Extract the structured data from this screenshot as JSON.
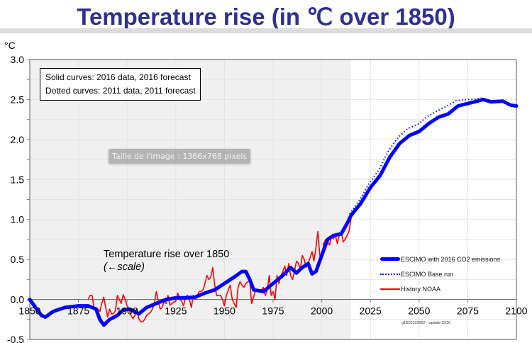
{
  "title": "Temperature rise (in ℃ over 1850)",
  "tooltip": "Taille de l'image : 1366x768 pixels",
  "chart_data": {
    "type": "line",
    "title": "Temperature rise (in ℃ over 1850)",
    "ylabel": "°C",
    "xlabel": "",
    "xlim": [
      1850,
      2100
    ],
    "ylim": [
      -0.5,
      3.0
    ],
    "x_ticks": [
      "1850",
      "1875",
      "1900",
      "1925",
      "1950",
      "1975",
      "2000",
      "2025",
      "2050",
      "2075",
      "2100"
    ],
    "y_ticks": [
      "3.0",
      "2.5",
      "2.0",
      "1.5",
      "1.0",
      "0.5",
      "0.0",
      "-0.5"
    ],
    "grid": true,
    "shaded_history_until": 2015,
    "info_box": [
      "Solid curves: 2016 data, 2016 forecast",
      "Dotted curves: 2011 data, 2011 forecast"
    ],
    "annotation": [
      "Temperature rise over 1850",
      "(←scale)"
    ],
    "legend_placement": "bottom-right",
    "footnote": "g1610102052 - update 2016",
    "series": [
      {
        "name": "ESCIMO with 2016 CO2 emissions",
        "style": "solid-thick",
        "color": "#0000ff",
        "x": [
          1850,
          1853,
          1856,
          1858,
          1862,
          1868,
          1875,
          1880,
          1884,
          1886,
          1888,
          1891,
          1895,
          1898,
          1901,
          1904,
          1906,
          1910,
          1915,
          1920,
          1925,
          1930,
          1935,
          1940,
          1945,
          1950,
          1955,
          1959,
          1961,
          1963,
          1965,
          1970,
          1975,
          1980,
          1984,
          1987,
          1990,
          1993,
          1995,
          1997,
          2000,
          2003,
          2006,
          2010,
          2013,
          2015,
          2020,
          2025,
          2030,
          2035,
          2040,
          2045,
          2050,
          2055,
          2060,
          2065,
          2070,
          2075,
          2080,
          2083,
          2087,
          2093,
          2097,
          2100
        ],
        "y": [
          0.0,
          -0.1,
          -0.2,
          -0.22,
          -0.15,
          -0.1,
          -0.08,
          -0.08,
          -0.12,
          -0.25,
          -0.32,
          -0.25,
          -0.2,
          -0.13,
          -0.12,
          -0.15,
          -0.18,
          -0.1,
          -0.05,
          0.0,
          0.02,
          0.02,
          0.03,
          0.08,
          0.12,
          0.2,
          0.28,
          0.35,
          0.35,
          0.25,
          0.12,
          0.1,
          0.2,
          0.3,
          0.4,
          0.33,
          0.4,
          0.45,
          0.32,
          0.35,
          0.55,
          0.75,
          0.8,
          0.82,
          0.95,
          1.05,
          1.2,
          1.4,
          1.55,
          1.78,
          1.95,
          2.05,
          2.1,
          2.2,
          2.28,
          2.32,
          2.42,
          2.45,
          2.48,
          2.5,
          2.47,
          2.48,
          2.43,
          2.42
        ]
      },
      {
        "name": "ESCIMO Base run",
        "style": "dotted",
        "color": "#0000ff",
        "x": [
          2015,
          2020,
          2025,
          2030,
          2035,
          2040,
          2045,
          2050,
          2055,
          2060,
          2065,
          2070,
          2075,
          2080,
          2083
        ],
        "y": [
          1.05,
          1.22,
          1.43,
          1.6,
          1.84,
          2.01,
          2.12,
          2.17,
          2.27,
          2.34,
          2.4,
          2.47,
          2.48,
          2.49,
          2.5
        ]
      },
      {
        "name": "History NOAA",
        "style": "solid-thin",
        "color": "#ff0000",
        "x": [
          1880,
          1881,
          1882,
          1883,
          1884,
          1885,
          1886,
          1887,
          1888,
          1889,
          1890,
          1891,
          1892,
          1893,
          1894,
          1895,
          1896,
          1897,
          1898,
          1899,
          1900,
          1901,
          1902,
          1903,
          1904,
          1905,
          1906,
          1907,
          1908,
          1909,
          1910,
          1911,
          1912,
          1913,
          1914,
          1915,
          1916,
          1917,
          1918,
          1919,
          1920,
          1921,
          1922,
          1923,
          1924,
          1925,
          1926,
          1927,
          1928,
          1929,
          1930,
          1931,
          1932,
          1933,
          1934,
          1935,
          1936,
          1937,
          1938,
          1939,
          1940,
          1941,
          1942,
          1943,
          1944,
          1945,
          1946,
          1947,
          1948,
          1949,
          1950,
          1951,
          1952,
          1953,
          1954,
          1955,
          1956,
          1957,
          1958,
          1959,
          1960,
          1961,
          1962,
          1963,
          1964,
          1965,
          1966,
          1967,
          1968,
          1969,
          1970,
          1971,
          1972,
          1973,
          1974,
          1975,
          1976,
          1977,
          1978,
          1979,
          1980,
          1981,
          1982,
          1983,
          1984,
          1985,
          1986,
          1987,
          1988,
          1989,
          1990,
          1991,
          1992,
          1993,
          1994,
          1995,
          1996,
          1997,
          1998,
          1999,
          2000,
          2001,
          2002,
          2003,
          2004,
          2005,
          2006,
          2007,
          2008,
          2009,
          2010,
          2011,
          2012,
          2013,
          2014,
          2015
        ],
        "y": [
          0.0,
          0.05,
          0.05,
          -0.1,
          -0.1,
          -0.12,
          -0.15,
          -0.05,
          0.03,
          -0.1,
          -0.22,
          -0.12,
          -0.18,
          -0.18,
          -0.14,
          0.05,
          0.0,
          -0.05,
          0.06,
          0.0,
          -0.08,
          -0.12,
          -0.2,
          -0.24,
          -0.2,
          -0.12,
          -0.24,
          -0.28,
          -0.28,
          -0.25,
          -0.2,
          -0.18,
          -0.16,
          -0.12,
          -0.05,
          0.1,
          -0.02,
          -0.12,
          -0.1,
          -0.02,
          -0.05,
          0.05,
          -0.07,
          -0.05,
          -0.03,
          -0.02,
          0.08,
          0.0,
          -0.02,
          -0.08,
          0.03,
          0.05,
          0.0,
          -0.1,
          0.05,
          0.0,
          0.04,
          0.1,
          0.1,
          0.12,
          0.2,
          0.3,
          0.25,
          0.28,
          0.4,
          0.18,
          0.05,
          0.05,
          0.05,
          0.0,
          -0.08,
          0.05,
          0.12,
          0.18,
          0.0,
          -0.05,
          -0.1,
          0.15,
          0.22,
          0.18,
          0.15,
          0.2,
          0.22,
          0.23,
          -0.05,
          0.03,
          0.12,
          0.1,
          0.1,
          0.12,
          0.15,
          0.05,
          0.12,
          0.3,
          0.05,
          0.1,
          0.0,
          0.3,
          0.2,
          0.3,
          0.35,
          0.42,
          0.3,
          0.45,
          0.3,
          0.25,
          0.35,
          0.48,
          0.45,
          0.38,
          0.55,
          0.5,
          0.4,
          0.45,
          0.52,
          0.6,
          0.48,
          0.65,
          0.85,
          0.55,
          0.5,
          0.7,
          0.75,
          0.72,
          0.68,
          0.8,
          0.76,
          0.8,
          0.7,
          0.8,
          0.85,
          0.72,
          0.75,
          0.8,
          0.85,
          1.0
        ]
      }
    ]
  }
}
